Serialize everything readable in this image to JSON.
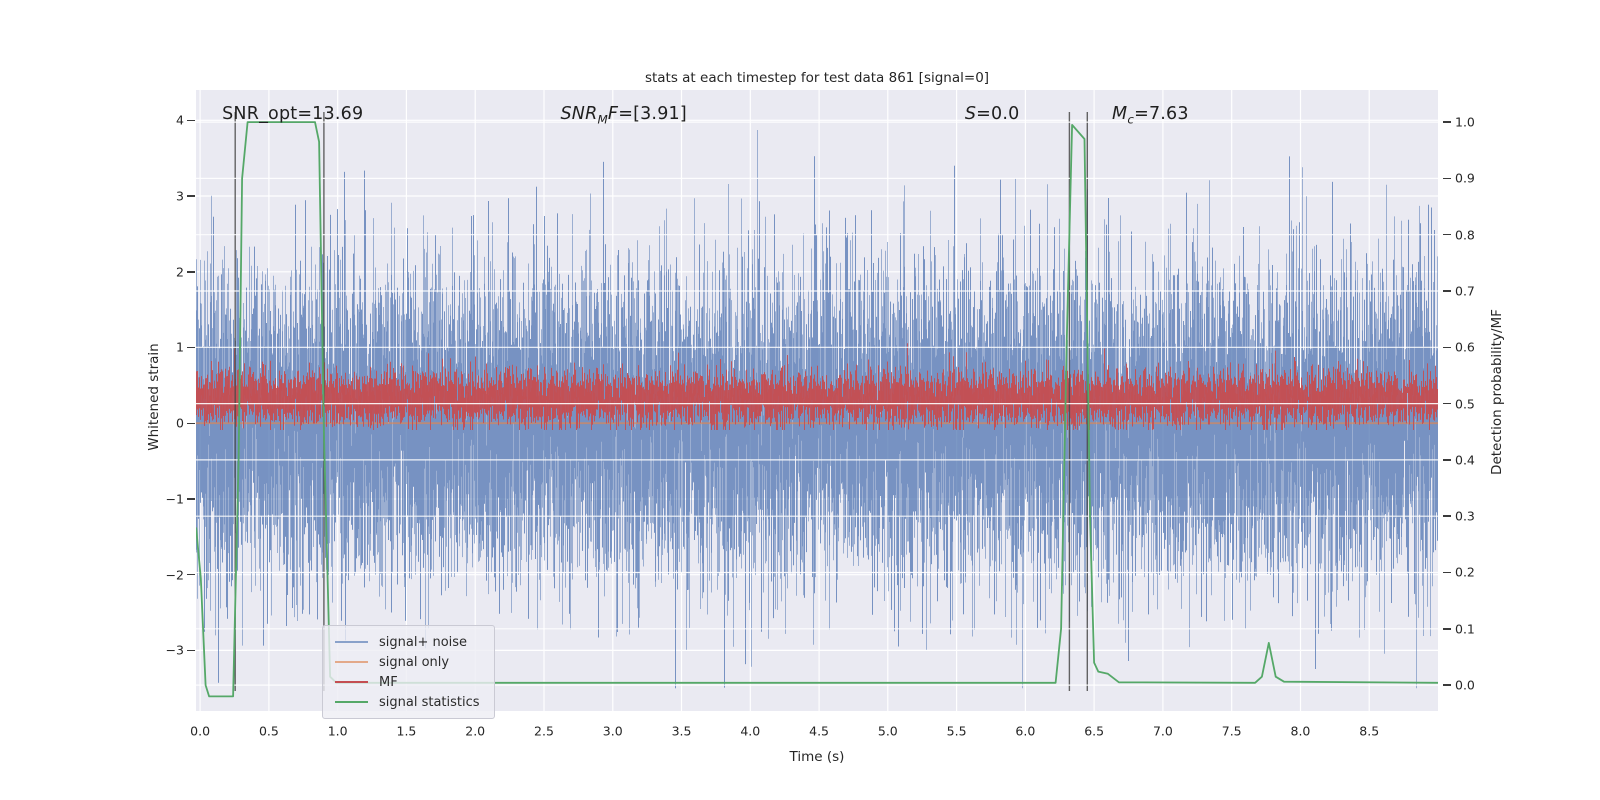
{
  "chart_data": {
    "type": "line",
    "title": "stats at each timestep for test data 861 [signal=0]",
    "xlabel": "Time (s)",
    "ylabel_left": "Whitened strain",
    "ylabel_right": "Detection probability/MF",
    "xlim": [
      -0.03,
      9.0
    ],
    "ylim_left": [
      -3.8,
      4.4
    ],
    "ylim_right": [
      -0.046,
      1.057
    ],
    "grid": "on",
    "background": "#eaeaf2",
    "grid_color": "#ffffff",
    "xticks": [
      {
        "v": 0.0,
        "label": "0.0"
      },
      {
        "v": 0.5,
        "label": "0.5"
      },
      {
        "v": 1.0,
        "label": "1.0"
      },
      {
        "v": 1.5,
        "label": "1.5"
      },
      {
        "v": 2.0,
        "label": "2.0"
      },
      {
        "v": 2.5,
        "label": "2.5"
      },
      {
        "v": 3.0,
        "label": "3.0"
      },
      {
        "v": 3.5,
        "label": "3.5"
      },
      {
        "v": 4.0,
        "label": "4.0"
      },
      {
        "v": 4.5,
        "label": "4.5"
      },
      {
        "v": 5.0,
        "label": "5.0"
      },
      {
        "v": 5.5,
        "label": "5.5"
      },
      {
        "v": 6.0,
        "label": "6.0"
      },
      {
        "v": 6.5,
        "label": "6.5"
      },
      {
        "v": 7.0,
        "label": "7.0"
      },
      {
        "v": 7.5,
        "label": "7.5"
      },
      {
        "v": 8.0,
        "label": "8.0"
      },
      {
        "v": 8.5,
        "label": "8.5"
      }
    ],
    "yticks_left": [
      {
        "v": 4,
        "label": "4"
      },
      {
        "v": 3,
        "label": "3"
      },
      {
        "v": 2,
        "label": "2"
      },
      {
        "v": 1,
        "label": "1"
      },
      {
        "v": 0,
        "label": "0"
      },
      {
        "v": -1,
        "label": "−1"
      },
      {
        "v": -2,
        "label": "−2"
      },
      {
        "v": -3,
        "label": "−3"
      }
    ],
    "yticks_right": [
      {
        "v": 1.0,
        "label": "1.0"
      },
      {
        "v": 0.9,
        "label": "0.9"
      },
      {
        "v": 0.8,
        "label": "0.8"
      },
      {
        "v": 0.7,
        "label": "0.7"
      },
      {
        "v": 0.6,
        "label": "0.6"
      },
      {
        "v": 0.5,
        "label": "0.5"
      },
      {
        "v": 0.4,
        "label": "0.4"
      },
      {
        "v": 0.3,
        "label": "0.3"
      },
      {
        "v": 0.2,
        "label": "0.2"
      },
      {
        "v": 0.1,
        "label": "0.1"
      },
      {
        "v": 0.0,
        "label": "0.0"
      }
    ],
    "series": [
      {
        "name": "signal+ noise",
        "axis": "left",
        "kind": "gaussian_noise",
        "color": "#4c72b0",
        "opacity": 0.5,
        "mean": 0,
        "std": 1.0,
        "clip": [
          -3.5,
          3.93
        ],
        "t_range": [
          0,
          9.0
        ]
      },
      {
        "name": "signal only",
        "axis": "left",
        "kind": "constant",
        "color": "#dd8452",
        "opacity": 0.65,
        "value": 0
      },
      {
        "name": "MF",
        "axis": "left",
        "kind": "gaussian_noise",
        "color": "#c44e52",
        "opacity": 0.9,
        "mean": 0.33,
        "std": 0.175,
        "clip": [
          -0.09,
          1.07
        ],
        "t_range": [
          0,
          9.0
        ]
      },
      {
        "name": "signal statistics",
        "axis": "right",
        "kind": "polyline",
        "color": "#55a868",
        "points": [
          [
            -0.029,
            0.28
          ],
          [
            0.005,
            0.19
          ],
          [
            0.04,
            0.0
          ],
          [
            0.065,
            -0.02
          ],
          [
            0.24,
            -0.02
          ],
          [
            0.28,
            0.4
          ],
          [
            0.305,
            0.9
          ],
          [
            0.345,
            1.0
          ],
          [
            0.835,
            1.0
          ],
          [
            0.865,
            0.965
          ],
          [
            0.9,
            0.45
          ],
          [
            0.945,
            0.015
          ],
          [
            0.99,
            0.004
          ],
          [
            6.22,
            0.004
          ],
          [
            6.26,
            0.1
          ],
          [
            6.3,
            0.6
          ],
          [
            6.34,
            0.995
          ],
          [
            6.43,
            0.97
          ],
          [
            6.47,
            0.3
          ],
          [
            6.5,
            0.04
          ],
          [
            6.53,
            0.024
          ],
          [
            6.6,
            0.02
          ],
          [
            6.68,
            0.005
          ],
          [
            7.67,
            0.004
          ],
          [
            7.72,
            0.015
          ],
          [
            7.77,
            0.075
          ],
          [
            7.82,
            0.015
          ],
          [
            7.88,
            0.006
          ],
          [
            9.0,
            0.004
          ]
        ]
      }
    ],
    "vlines": {
      "color": "#4a4a4a",
      "x": [
        0.255,
        0.9,
        6.32,
        6.45
      ]
    },
    "annotations": [
      {
        "pre": "SNR_opt",
        "sub": "",
        "post": "",
        "eq": "=13.69",
        "italic": false,
        "t": 0.16
      },
      {
        "pre": "SNR",
        "sub": "M",
        "post": "F",
        "eq": "=[3.91]",
        "italic": true,
        "t": 2.62
      },
      {
        "pre": "S",
        "sub": "",
        "post": "",
        "eq": "=0.0",
        "italic": true,
        "t": 5.56
      },
      {
        "pre": "M",
        "sub": "c",
        "post": "",
        "eq": "=7.63",
        "italic": true,
        "t": 6.63
      }
    ],
    "legend": {
      "position": "lower left",
      "items": [
        {
          "label": "signal+ noise",
          "color": "rgba(76,114,176,0.62)"
        },
        {
          "label": "signal only",
          "color": "rgba(221,132,82,0.65)"
        },
        {
          "label": "MF",
          "color": "#c44e52"
        },
        {
          "label": "signal statistics",
          "color": "#55a868"
        }
      ]
    }
  }
}
